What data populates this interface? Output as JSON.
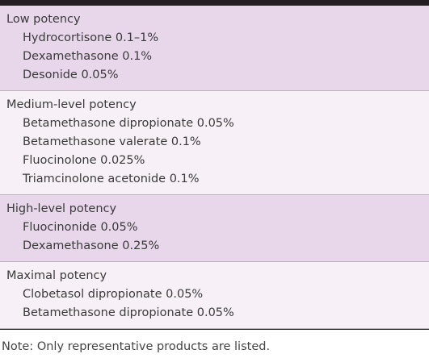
{
  "table": {
    "groups": [
      {
        "heading": "Low potency",
        "items": [
          "Hydrocortisone 0.1–1%",
          "Dexamethasone 0.1%",
          "Desonide 0.05%"
        ]
      },
      {
        "heading": "Medium-level potency",
        "items": [
          "Betamethasone dipropionate 0.05%",
          "Betamethasone valerate 0.1%",
          "Fluocinolone 0.025%",
          "Triamcinolone acetonide 0.1%"
        ]
      },
      {
        "heading": "High-level potency",
        "items": [
          "Fluocinonide 0.05%",
          "Dexamethasone 0.25%"
        ]
      },
      {
        "heading": "Maximal potency",
        "items": [
          "Clobetasol dipropionate 0.05%",
          "Betamethasone dipropionate 0.05%"
        ]
      }
    ]
  },
  "note": "Note: Only representative products are listed."
}
